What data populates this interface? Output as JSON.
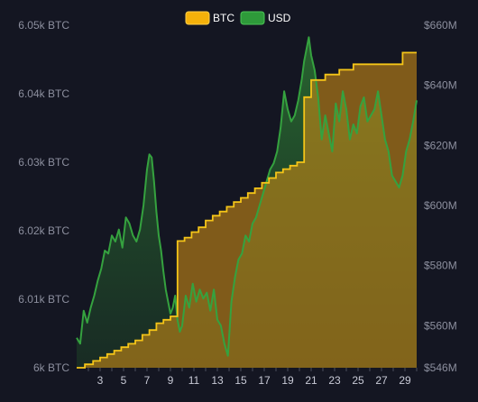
{
  "chart_data": {
    "type": "area",
    "legend": [
      {
        "label": "BTC",
        "color": "#f5b10a"
      },
      {
        "label": "USD",
        "color": "#2e9a3a"
      }
    ],
    "legend_placement": "top-center",
    "grid": false,
    "x_ticks": [
      "3",
      "5",
      "7",
      "9",
      "11",
      "13",
      "15",
      "17",
      "19",
      "21",
      "23",
      "25",
      "27",
      "29"
    ],
    "x_range": [
      1,
      30
    ],
    "left_axis": {
      "range": [
        6000,
        6050
      ],
      "ticks": [
        {
          "value": 6000,
          "label": "6k BTC"
        },
        {
          "value": 6010,
          "label": "6.01k BTC"
        },
        {
          "value": 6020,
          "label": "6.02k BTC"
        },
        {
          "value": 6030,
          "label": "6.03k BTC"
        },
        {
          "value": 6040,
          "label": "6.04k BTC"
        },
        {
          "value": 6050,
          "label": "6.05k BTC"
        }
      ]
    },
    "right_axis": {
      "range": [
        546,
        660
      ],
      "ticks": [
        {
          "value": 546,
          "label": "$546M"
        },
        {
          "value": 560,
          "label": "$560M"
        },
        {
          "value": 580,
          "label": "$580M"
        },
        {
          "value": 600,
          "label": "$600M"
        },
        {
          "value": 620,
          "label": "$620M"
        },
        {
          "value": 640,
          "label": "$640M"
        },
        {
          "value": 660,
          "label": "$660M"
        }
      ]
    },
    "series": [
      {
        "name": "BTC",
        "axis": "left",
        "color": "#f5b10a",
        "x": [
          1.0,
          1.7,
          2.4,
          3.0,
          3.6,
          4.2,
          4.8,
          5.4,
          6.0,
          6.6,
          7.2,
          7.8,
          8.4,
          9.0,
          9.6,
          10.2,
          10.8,
          11.4,
          12.0,
          12.6,
          13.2,
          13.8,
          14.4,
          15.0,
          15.6,
          16.2,
          16.8,
          17.4,
          18.0,
          18.6,
          19.2,
          19.8,
          20.4,
          21.0,
          21.6,
          22.2,
          22.8,
          23.4,
          24.0,
          24.6,
          25.2,
          25.8,
          26.4,
          27.0,
          27.6,
          28.2,
          28.8,
          29.4,
          30.0
        ],
        "values": [
          6000.0,
          6000.5,
          6001.0,
          6001.5,
          6002.0,
          6002.5,
          6003.0,
          6003.5,
          6004.0,
          6004.8,
          6005.5,
          6006.5,
          6007.0,
          6007.5,
          6018.5,
          6019.0,
          6019.8,
          6020.5,
          6021.5,
          6022.2,
          6022.8,
          6023.5,
          6024.2,
          6024.8,
          6025.5,
          6026.2,
          6027.0,
          6027.7,
          6028.5,
          6029.0,
          6029.5,
          6030.0,
          6039.5,
          6042.0,
          6042.0,
          6042.8,
          6042.8,
          6043.5,
          6043.5,
          6044.3,
          6044.3,
          6044.3,
          6044.3,
          6044.3,
          6044.3,
          6044.3,
          6046.0,
          6046.0,
          6046.0
        ]
      },
      {
        "name": "USD",
        "axis": "right",
        "color": "#2e9a3a",
        "x": [
          1.0,
          1.3,
          1.6,
          1.9,
          2.2,
          2.5,
          2.8,
          3.1,
          3.4,
          3.7,
          4.0,
          4.3,
          4.6,
          4.9,
          5.2,
          5.5,
          5.8,
          6.1,
          6.4,
          6.7,
          7.0,
          7.2,
          7.4,
          7.6,
          7.8,
          8.0,
          8.2,
          8.4,
          8.6,
          8.8,
          9.0,
          9.2,
          9.4,
          9.6,
          9.8,
          10.0,
          10.3,
          10.6,
          10.9,
          11.2,
          11.5,
          11.8,
          12.1,
          12.4,
          12.7,
          13.0,
          13.3,
          13.6,
          13.9,
          14.2,
          14.5,
          14.8,
          15.1,
          15.4,
          15.7,
          16.0,
          16.3,
          16.6,
          16.9,
          17.2,
          17.5,
          17.8,
          18.1,
          18.4,
          18.7,
          19.0,
          19.3,
          19.6,
          19.9,
          20.2,
          20.4,
          20.6,
          20.8,
          21.0,
          21.3,
          21.6,
          21.9,
          22.2,
          22.5,
          22.8,
          23.1,
          23.4,
          23.7,
          24.0,
          24.3,
          24.6,
          24.9,
          25.2,
          25.5,
          25.8,
          26.1,
          26.4,
          26.7,
          27.0,
          27.3,
          27.6,
          27.9,
          28.2,
          28.5,
          28.8,
          29.1,
          29.4,
          29.7,
          30.0
        ],
        "values": [
          556,
          554,
          565,
          561,
          566,
          570,
          575,
          579,
          585,
          584,
          590,
          588,
          592,
          586,
          596,
          594,
          590,
          588,
          592,
          600,
          612,
          617,
          616,
          608,
          598,
          590,
          585,
          578,
          572,
          568,
          564,
          566,
          570,
          562,
          558,
          560,
          570,
          566,
          574,
          568,
          572,
          569,
          571,
          565,
          572,
          562,
          560,
          554,
          550,
          568,
          576,
          582,
          584,
          590,
          588,
          594,
          596,
          600,
          604,
          608,
          612,
          614,
          618,
          626,
          638,
          632,
          628,
          630,
          635,
          642,
          648,
          652,
          656,
          650,
          645,
          636,
          622,
          630,
          624,
          618,
          634,
          628,
          638,
          632,
          622,
          627,
          624,
          633,
          636,
          628,
          630,
          632,
          638,
          630,
          622,
          618,
          610,
          608,
          606,
          610,
          618,
          622,
          628,
          635
        ]
      }
    ]
  }
}
